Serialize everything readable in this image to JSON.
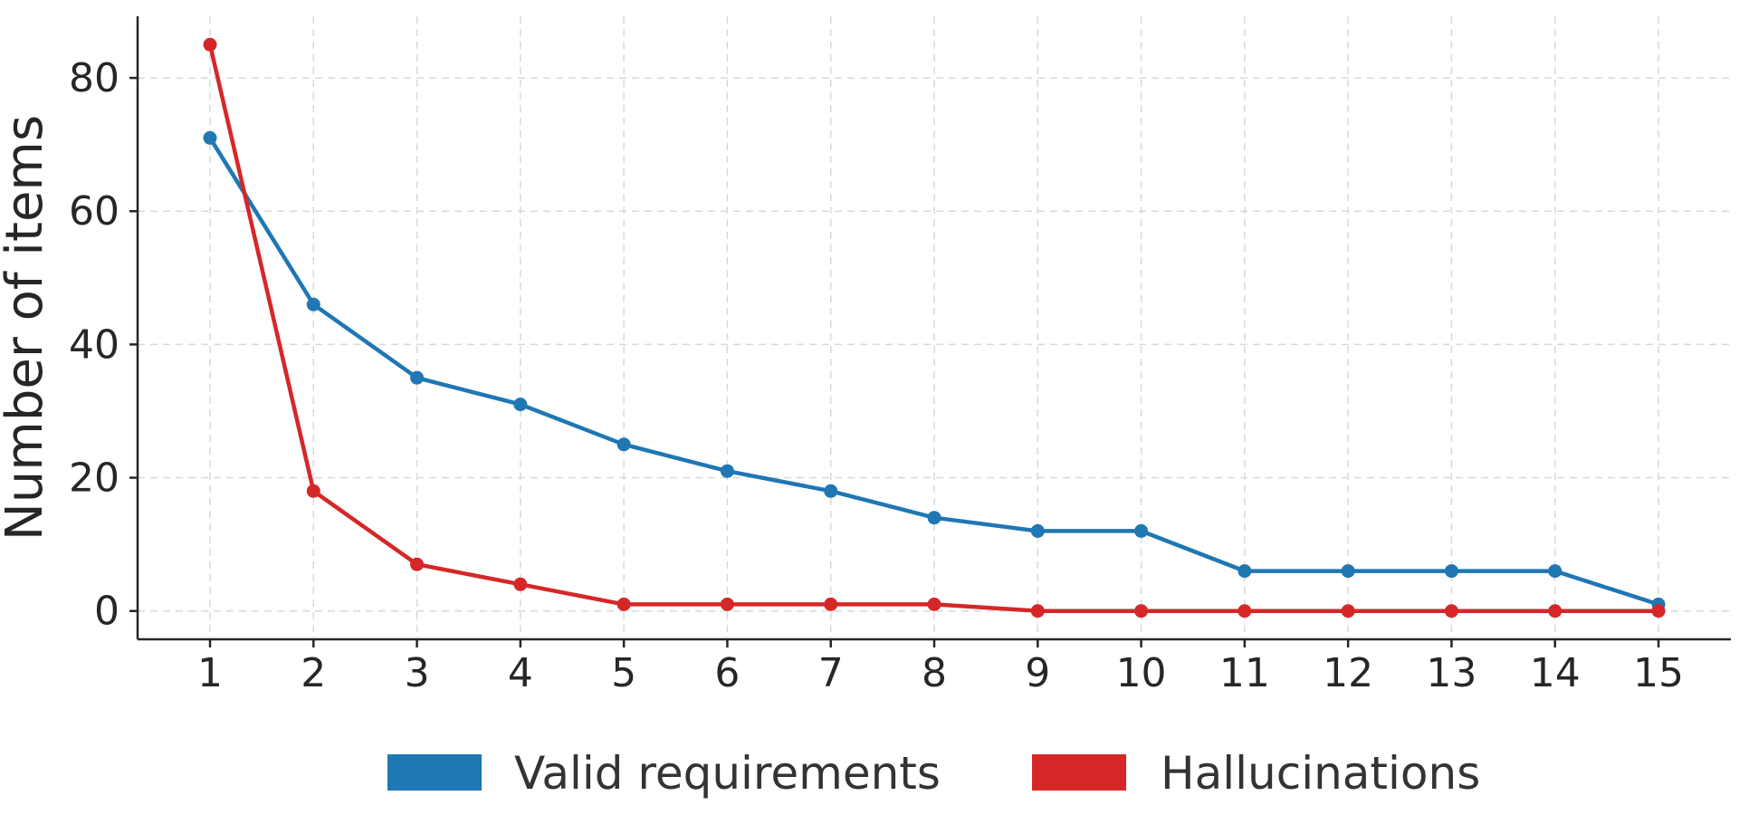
{
  "chart_data": {
    "type": "line",
    "title": "",
    "xlabel": "",
    "ylabel": "Number of items",
    "x": [
      1,
      2,
      3,
      4,
      5,
      6,
      7,
      8,
      9,
      10,
      11,
      12,
      13,
      14,
      15
    ],
    "xticks": [
      "1",
      "2",
      "3",
      "4",
      "5",
      "6",
      "7",
      "8",
      "9",
      "10",
      "11",
      "12",
      "13",
      "14",
      "15"
    ],
    "yticks": [
      0,
      20,
      40,
      60,
      80
    ],
    "ylim": [
      -4.25,
      89.25
    ],
    "xlim": [
      0.3,
      15.7
    ],
    "grid": true,
    "legend_position": "bottom-center",
    "series": [
      {
        "name": "Valid requirements",
        "color": "#1f77b4",
        "values": [
          71,
          46,
          35,
          31,
          25,
          21,
          18,
          14,
          12,
          12,
          6,
          6,
          6,
          6,
          1
        ]
      },
      {
        "name": "Hallucinations",
        "color": "#d62728",
        "values": [
          85,
          18,
          7,
          4,
          1,
          1,
          1,
          1,
          0,
          0,
          0,
          0,
          0,
          0,
          0
        ]
      }
    ]
  }
}
